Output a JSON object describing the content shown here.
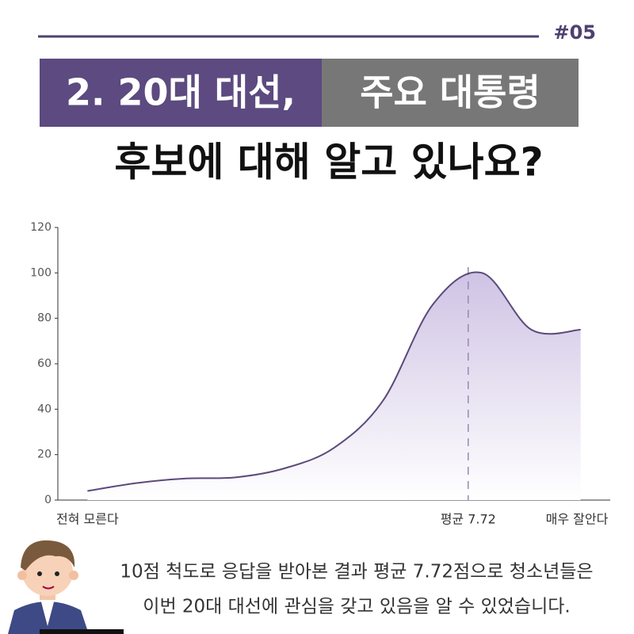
{
  "header": {
    "tag": "#05",
    "title_part1": "2. 20대 대선,",
    "title_part2": "주요 대통령",
    "title_line2": "후보에 대해 알고 있나요?"
  },
  "chart_data": {
    "type": "area",
    "color": "#5b4a7a",
    "fill": "#d3c8e6",
    "x": [
      0,
      1,
      2,
      3,
      4,
      5,
      6,
      7,
      8,
      9,
      10
    ],
    "values": [
      4,
      7.5,
      9.5,
      10,
      14,
      23,
      44,
      86,
      100,
      75,
      75
    ],
    "xlim": [
      -0.6,
      10.6
    ],
    "ylim": [
      0,
      120
    ],
    "yticks": [
      0,
      20,
      40,
      60,
      80,
      100,
      120
    ],
    "x_start_label": "전혀 모른다",
    "x_end_label": "매우 잘안다",
    "mean": {
      "value": 7.72,
      "label": "평균 7.72"
    }
  },
  "caption": [
    "10점 척도로 응답을 받아본 결과 평균 7.72점으로 청소년들은",
    "이번 20대 대선에 관심을 갖고 있음을 알 수 있었습니다."
  ]
}
